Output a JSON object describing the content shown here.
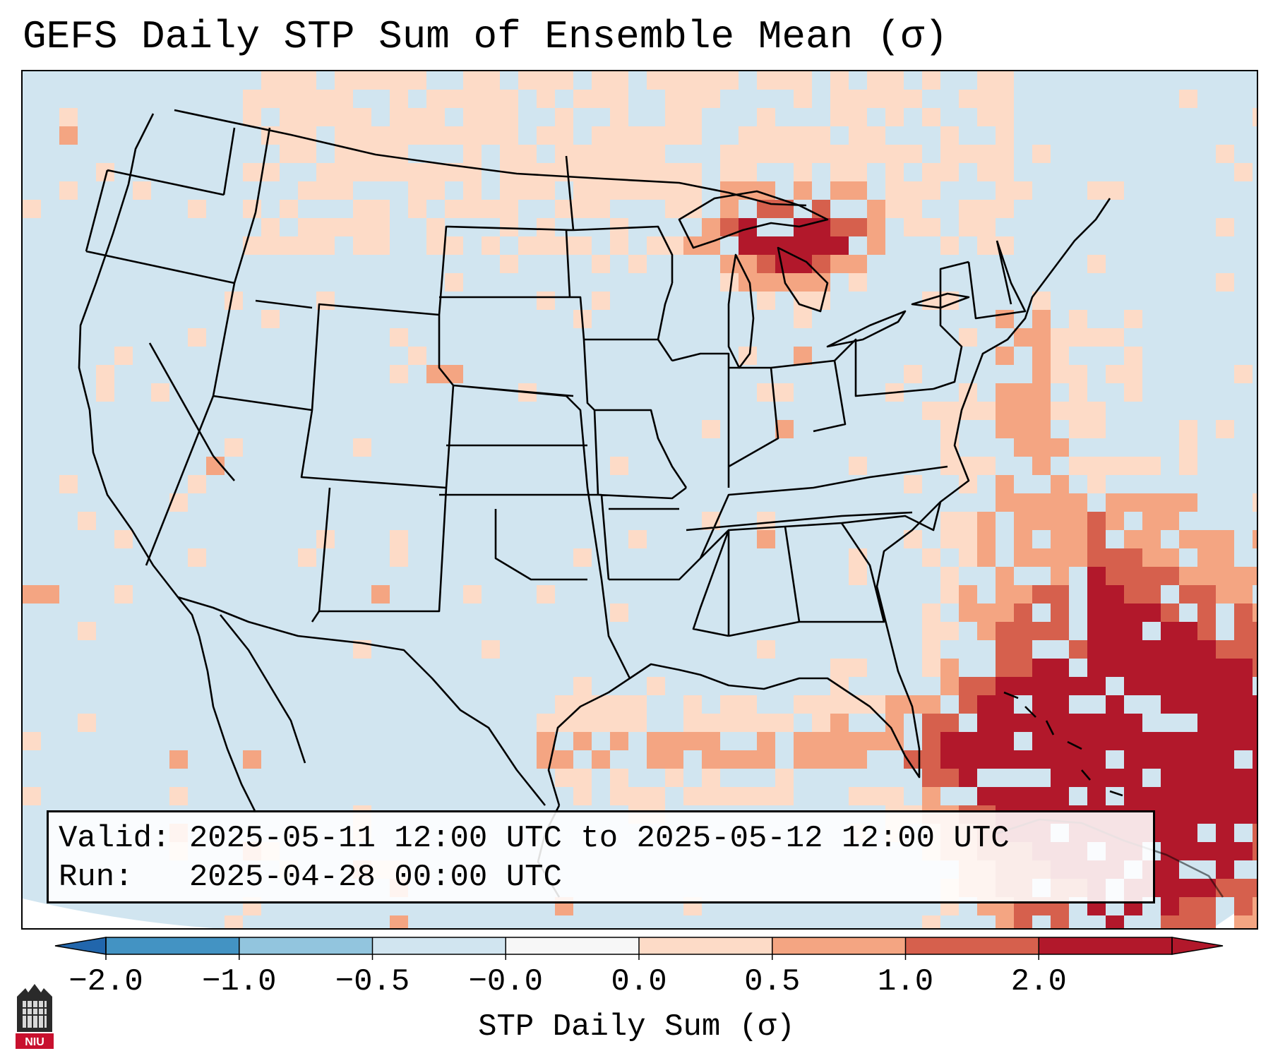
{
  "title": "GEFS Daily STP Sum of Ensemble Mean (σ)",
  "info": {
    "valid_label": "Valid:",
    "valid_value": "2025-05-11 12:00 UTC to 2025-05-12 12:00 UTC",
    "run_label": "Run:",
    "run_value": "2025-04-28 00:00 UTC"
  },
  "colorbar": {
    "title": "STP Daily Sum (σ)",
    "tick_labels": [
      "−2.0",
      "−1.0",
      "−0.5",
      "−0.0",
      "0.0",
      "0.5",
      "1.0",
      "2.0"
    ],
    "bin_colors": [
      "#4393c3",
      "#92c5de",
      "#d1e5f0",
      "#f7f7f7",
      "#fddbc7",
      "#f4a582",
      "#d6604d",
      "#b2182b"
    ],
    "extend_low_color": "#2166ac",
    "extend_high_color": "#b2182b"
  },
  "map": {
    "background_color": "#d1e5f0",
    "outline_color": "#000000",
    "region_color_hint": {
      "southeast_ocean": "#b2182b",
      "gulf_coast": "#fddbc7",
      "upper_great_lakes": "#b2182b"
    }
  },
  "logo": {
    "text": "NIU",
    "icon": "niu-logo-icon"
  }
}
